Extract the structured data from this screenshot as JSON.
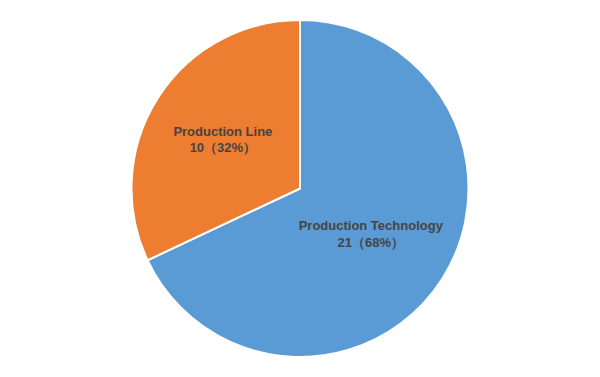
{
  "chart_data": {
    "type": "pie",
    "categories": [
      "Production Technology",
      "Production Line"
    ],
    "values": [
      68,
      32
    ],
    "value_labels": [
      "21（68%）",
      "10（32%）"
    ],
    "colors": [
      "#5B9BD5",
      "#ED7D31"
    ],
    "data_labels": true
  }
}
